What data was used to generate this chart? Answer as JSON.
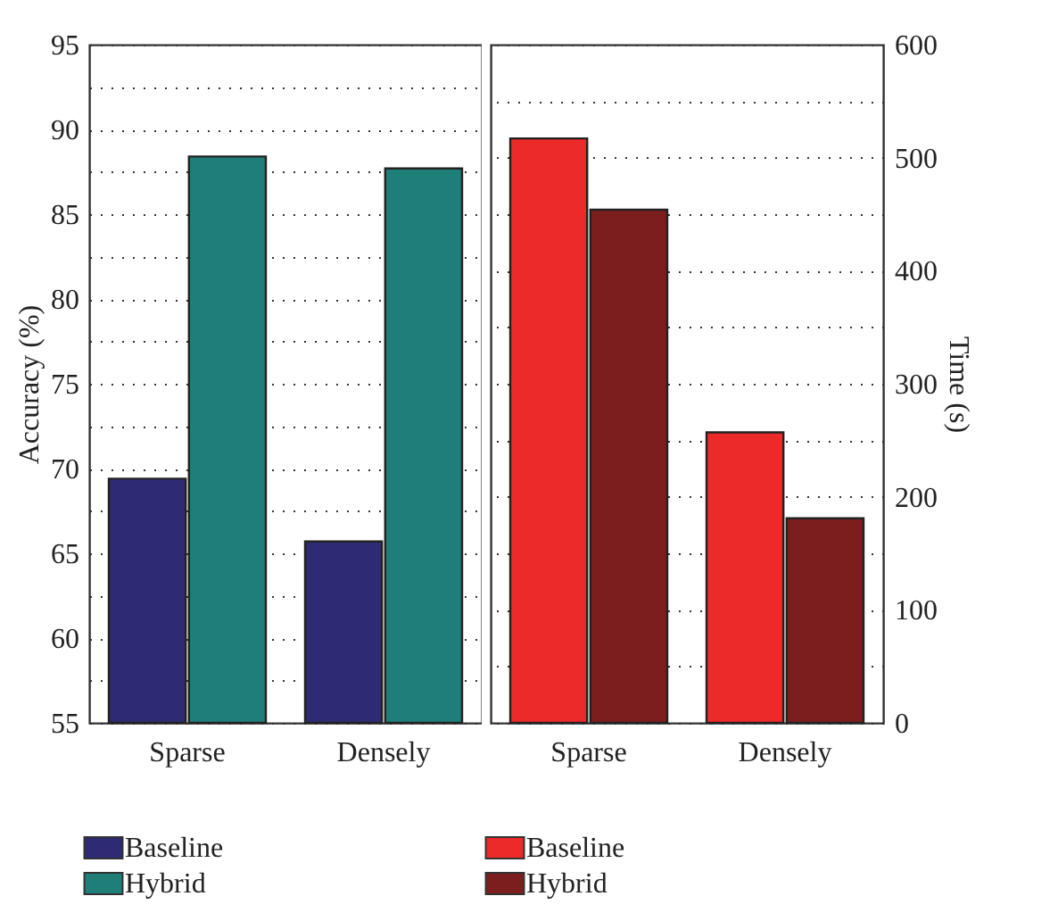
{
  "chart_data": [
    {
      "type": "bar",
      "ylabel": "Accuracy (%)",
      "categories": [
        "Sparse",
        "Densely"
      ],
      "series": [
        {
          "name": "Baseline",
          "color": "#2e2b74",
          "values": [
            69.4,
            65.7
          ]
        },
        {
          "name": "Hybrid",
          "color": "#1f7e78",
          "values": [
            88.4,
            87.7
          ]
        }
      ],
      "ylim": [
        55,
        95
      ],
      "yticks": [
        55,
        {
          "value": 57.5,
          "label": null
        },
        60,
        {
          "value": 62.5,
          "label": null
        },
        65,
        {
          "value": 67.5,
          "label": null
        },
        70,
        {
          "value": 72.5,
          "label": null
        },
        75,
        {
          "value": 77.5,
          "label": null
        },
        80,
        {
          "value": 82.5,
          "label": null
        },
        85,
        {
          "value": 87.5,
          "label": null
        },
        90,
        {
          "value": 92.5,
          "label": null
        },
        95
      ],
      "grid": "y",
      "legend": "bottom"
    },
    {
      "type": "bar",
      "ylabel": "Time (s)",
      "categories": [
        "Sparse",
        "Densely"
      ],
      "series": [
        {
          "name": "Baseline",
          "color": "#ec2a2a",
          "values": [
            517,
            257
          ]
        },
        {
          "name": "Hybrid",
          "color": "#7d1e1e",
          "values": [
            454,
            181
          ]
        }
      ],
      "ylim": [
        0,
        600
      ],
      "yticks": [
        0,
        {
          "value": 50,
          "label": null
        },
        100,
        {
          "value": 150,
          "label": null
        },
        200,
        {
          "value": 250,
          "label": null
        },
        300,
        {
          "value": 350,
          "label": null
        },
        400,
        {
          "value": 450,
          "label": null
        },
        500,
        {
          "value": 550,
          "label": null
        },
        600
      ],
      "grid": "y",
      "legend": "bottom"
    }
  ]
}
